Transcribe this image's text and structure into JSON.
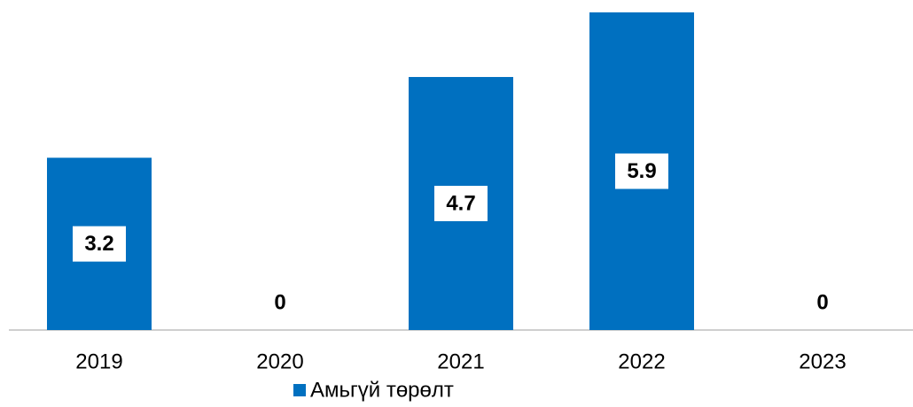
{
  "chart_data": {
    "type": "bar",
    "categories": [
      "2019",
      "2020",
      "2021",
      "2022",
      "2023"
    ],
    "series": [
      {
        "name": "Амьгүй төрөлт",
        "color": "#0070c0",
        "values": [
          3.2,
          0,
          4.7,
          5.9,
          0
        ]
      }
    ]
  }
}
